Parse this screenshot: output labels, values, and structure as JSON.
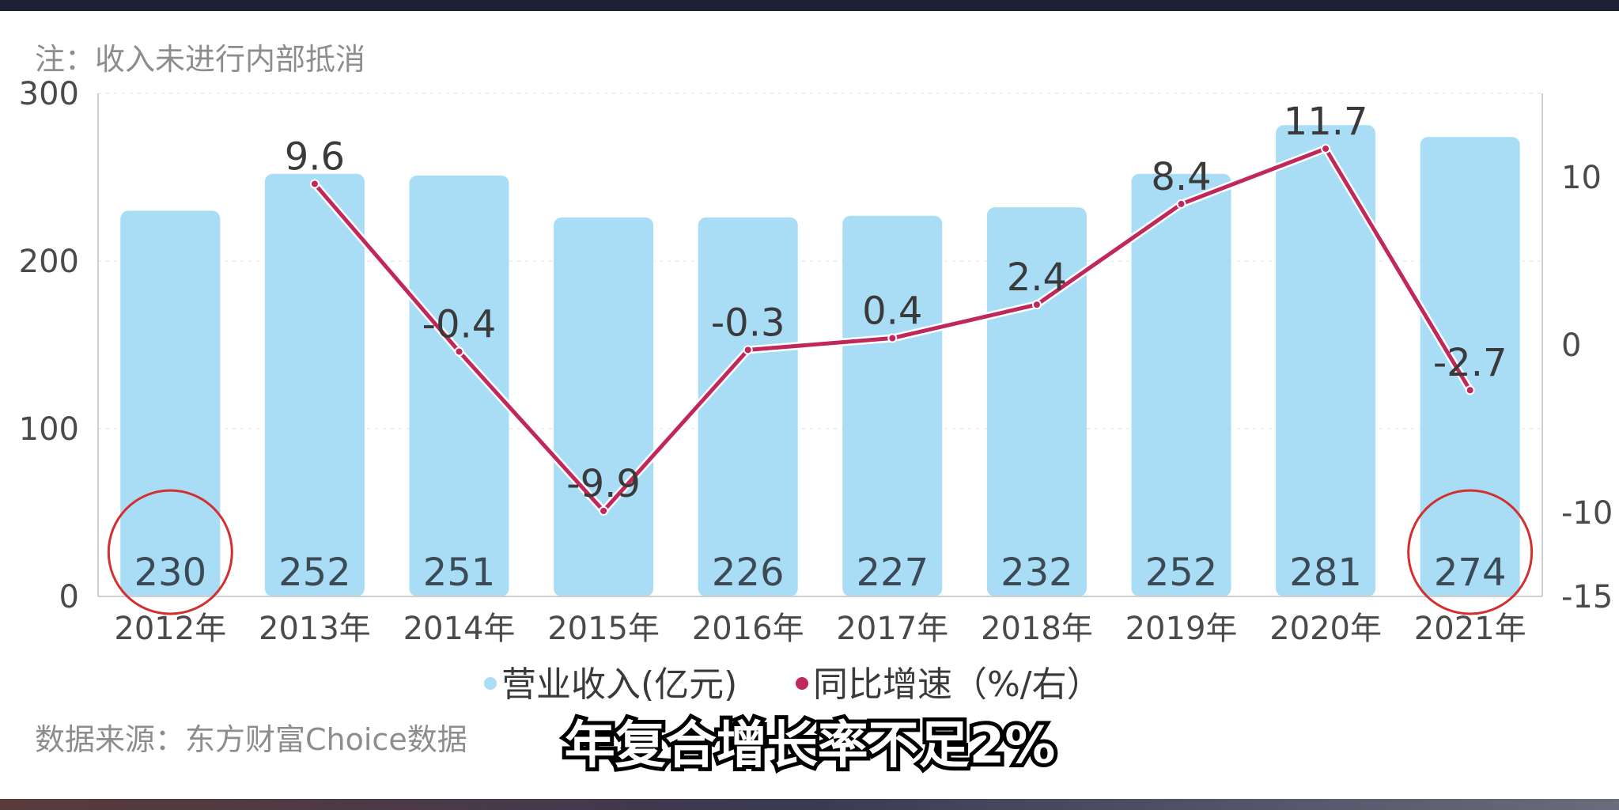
{
  "note": "注：收入未进行内部抵消",
  "source": "数据来源：东方财富Choice数据",
  "caption": "年复合增长率不足2%",
  "colors": {
    "bar": "#a9dcf5",
    "line": "#c0285b",
    "circle": "#d32f2f"
  },
  "chart_data": {
    "type": "bar",
    "categories": [
      "2012年",
      "2013年",
      "2014年",
      "2015年",
      "2016年",
      "2017年",
      "2018年",
      "2019年",
      "2020年",
      "2021年"
    ],
    "series": [
      {
        "name": "营业收入(亿元)",
        "type": "bar",
        "axis": "left",
        "values": [
          230,
          252,
          251,
          226,
          226,
          227,
          232,
          252,
          281,
          274
        ],
        "labels": [
          "230",
          "252",
          "251",
          "",
          "226",
          "227",
          "232",
          "252",
          "281",
          "274"
        ]
      },
      {
        "name": "同比增速（%/右）",
        "type": "line",
        "axis": "right",
        "values": [
          null,
          9.6,
          -0.4,
          -9.9,
          -0.3,
          0.4,
          2.4,
          8.4,
          11.7,
          -2.7
        ],
        "labels": [
          "",
          "9.6",
          "-0.4",
          "-9.9",
          "-0.3",
          "0.4",
          "2.4",
          "8.4",
          "11.7",
          "-2.7"
        ]
      }
    ],
    "y_left": {
      "min": 0,
      "max": 300,
      "ticks": [
        "0",
        "100",
        "200",
        "300"
      ]
    },
    "y_right": {
      "min": -15,
      "max": 15,
      "ticks": [
        "-15",
        "-10",
        "0",
        "10"
      ]
    },
    "legend": {
      "position": "bottom"
    },
    "highlighted_categories": [
      "2012年",
      "2021年"
    ]
  }
}
